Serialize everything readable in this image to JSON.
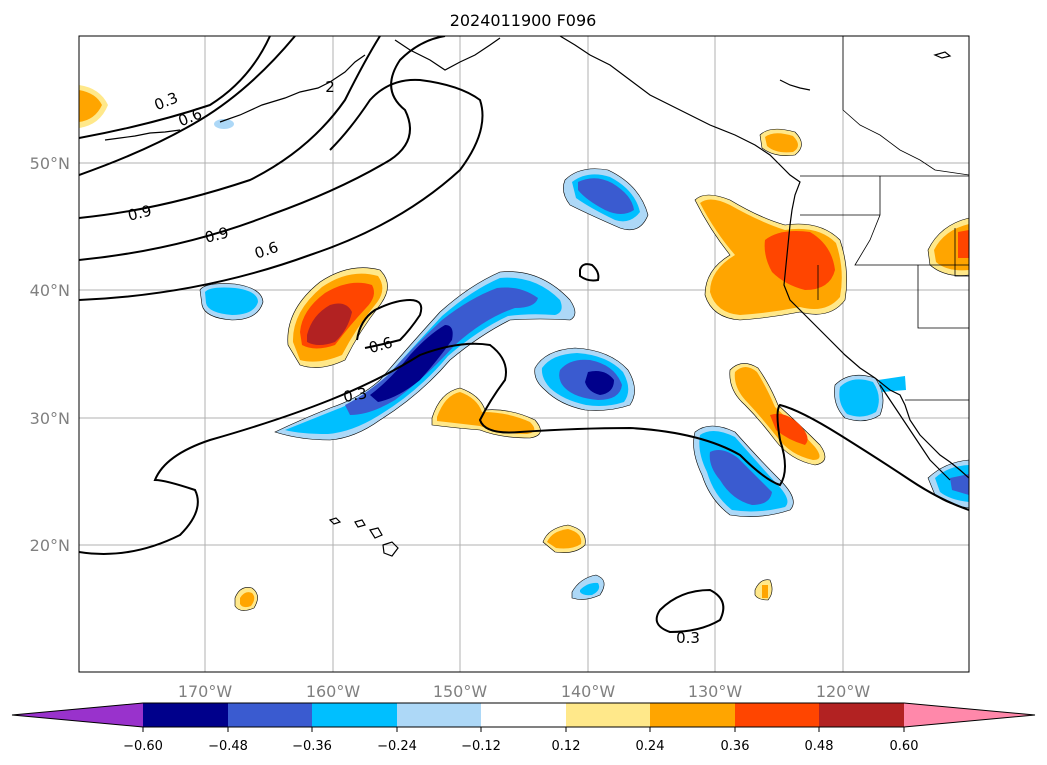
{
  "title": "2024011900 F096",
  "map": {
    "lat_labels": [
      "50°N",
      "40°N",
      "30°N",
      "20°N"
    ],
    "lon_labels": [
      "170°W",
      "160°W",
      "150°W",
      "140°W",
      "130°W",
      "120°W"
    ]
  },
  "contour_labels": [
    "0.3",
    "0.6",
    "0.9",
    "0.9",
    "0.6",
    "0.6",
    "0.3",
    "0.3",
    "2"
  ],
  "colorbar": {
    "ticks": [
      "−0.60",
      "−0.48",
      "−0.36",
      "−0.24",
      "−0.12",
      "0.12",
      "0.24",
      "0.36",
      "0.48",
      "0.60"
    ],
    "colors": {
      "under": "#9932cc",
      "c1": "#00008b",
      "c2": "#3a5bd0",
      "c3": "#00bfff",
      "c4": "#add8f7",
      "c5": "#ffffff",
      "c6": "#ffe88a",
      "c7": "#ffa500",
      "c8": "#ff4500",
      "c9": "#b22222",
      "over": "#ff88aa"
    }
  }
}
